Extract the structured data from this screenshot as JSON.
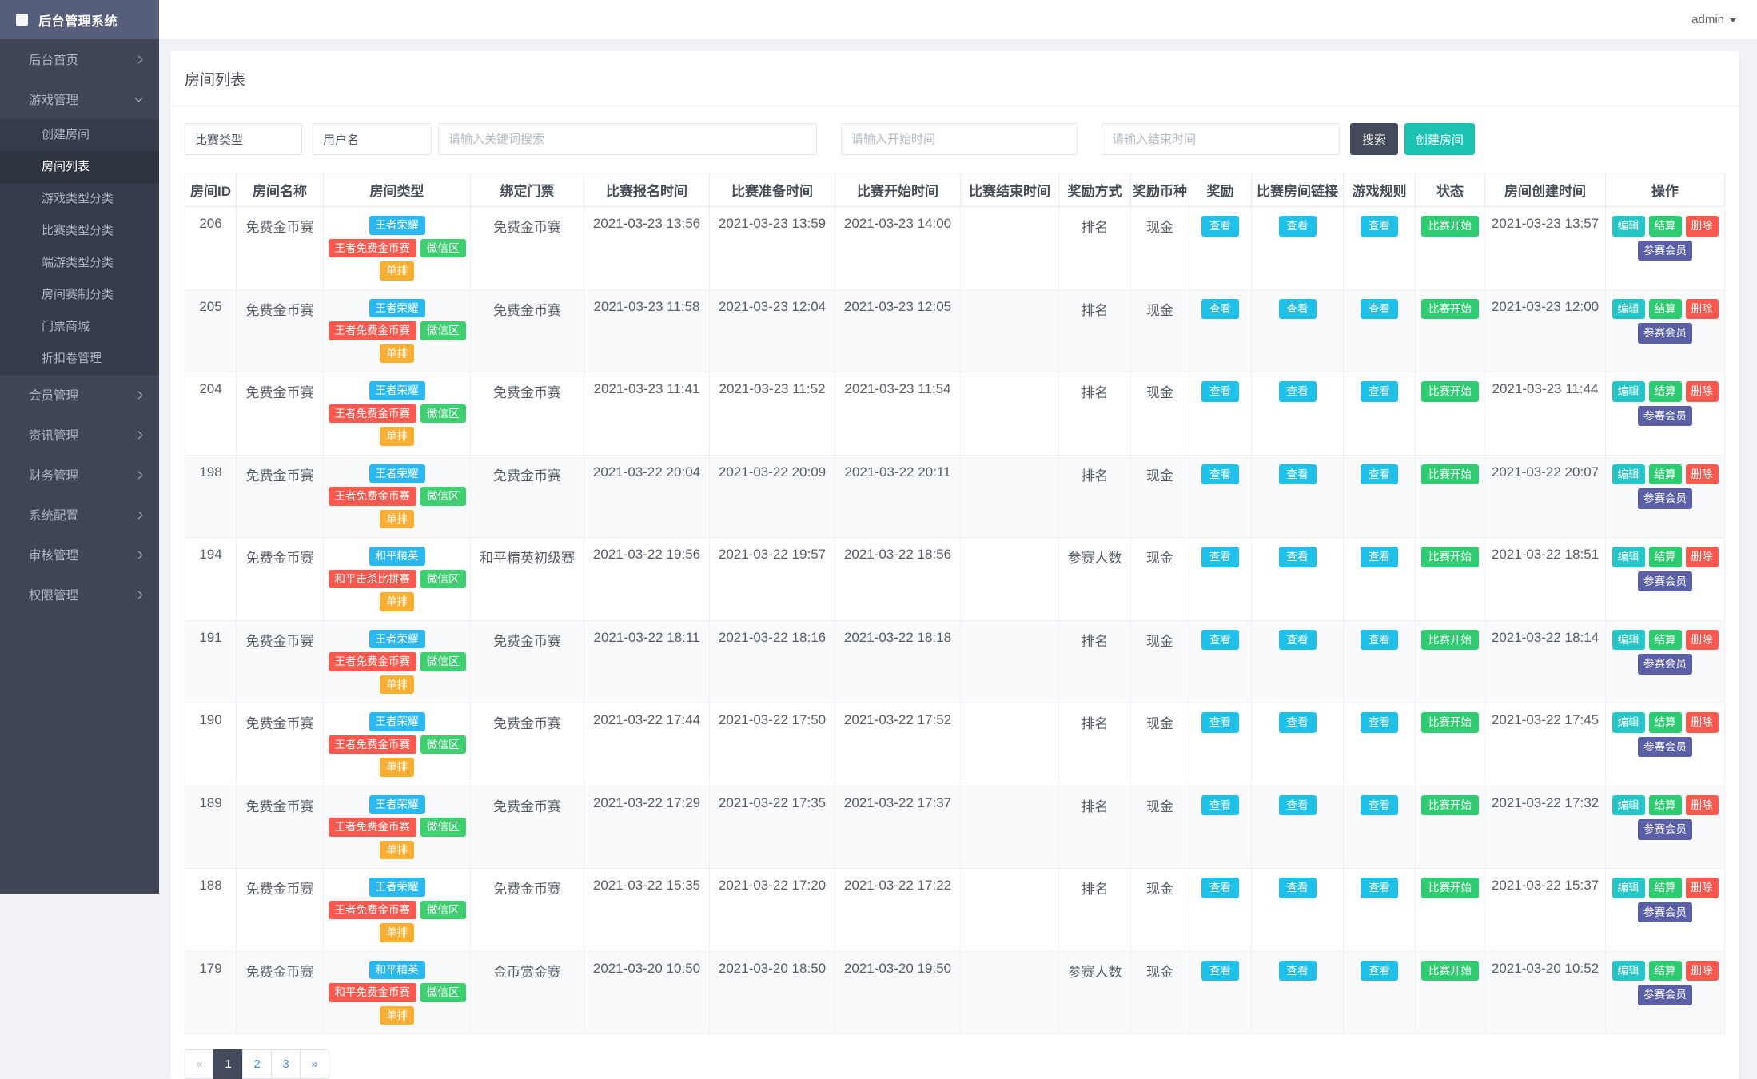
{
  "app": {
    "title": "后台管理系统",
    "user": "admin"
  },
  "theme": {
    "sidebar_bg": "#3f4554",
    "sidebar_header_bg": "#565e7c",
    "submenu_bg": "#363b49",
    "search_button_bg": "#434a5b",
    "create_button_bg": "#1bc2b1",
    "view_button_bg": "#1fc1e8",
    "status_bg": "#2fcc71",
    "edit_bg": "#25c6c8",
    "settle_bg": "#2ecc71",
    "delete_bg": "#f9594e",
    "member_bg": "#5b5fa6",
    "tag_blue": "#2ab8f0",
    "tag_red": "#f9594e",
    "tag_green": "#3ecf71",
    "tag_orange": "#f8af33"
  },
  "sidebar": {
    "items": [
      {
        "label": "后台首页",
        "chevron": "right"
      },
      {
        "label": "游戏管理",
        "chevron": "down",
        "expanded": true,
        "children": [
          {
            "label": "创建房间"
          },
          {
            "label": "房间列表",
            "active": true
          },
          {
            "label": "游戏类型分类"
          },
          {
            "label": "比赛类型分类"
          },
          {
            "label": "端游类型分类"
          },
          {
            "label": "房间赛制分类"
          },
          {
            "label": "门票商城"
          },
          {
            "label": "折扣卷管理"
          }
        ]
      },
      {
        "label": "会员管理",
        "chevron": "right"
      },
      {
        "label": "资讯管理",
        "chevron": "right"
      },
      {
        "label": "财务管理",
        "chevron": "right"
      },
      {
        "label": "系统配置",
        "chevron": "right"
      },
      {
        "label": "审核管理",
        "chevron": "right"
      },
      {
        "label": "权限管理",
        "chevron": "right"
      }
    ]
  },
  "page": {
    "title": "房间列表"
  },
  "filters": {
    "match_type_select": "比赛类型",
    "username_select": "用户名",
    "keyword_placeholder": "请输入关键词搜索",
    "start_time_placeholder": "请输入开始时间",
    "end_time_placeholder": "请输入结束时间",
    "search_button": "搜索",
    "create_room_button": "创建房间"
  },
  "table": {
    "columns": [
      "房间ID",
      "房间名称",
      "房间类型",
      "绑定门票",
      "比赛报名时间",
      "比赛准备时间",
      "比赛开始时间",
      "比赛结束时间",
      "奖励方式",
      "奖励币种",
      "奖励",
      "比赛房间链接",
      "游戏规则",
      "状态",
      "房间创建时间",
      "操作"
    ],
    "view_button": "查看",
    "actions": {
      "edit": "编辑",
      "settle": "结算",
      "delete": "删除",
      "members": "参赛会员"
    },
    "rows": [
      {
        "id": "206",
        "name": "免费金币赛",
        "tags": [
          {
            "text": "王者荣耀",
            "color": "blue"
          },
          {
            "text": "王者免费金币赛",
            "color": "red"
          },
          {
            "text": "微信区",
            "color": "green"
          },
          {
            "text": "单排",
            "color": "orange"
          }
        ],
        "ticket": "免费金币赛",
        "signup_time": "2021-03-23 13:56",
        "ready_time": "2021-03-23 13:59",
        "start_time": "2021-03-23 14:00",
        "end_time": "",
        "reward_mode": "排名",
        "reward_currency": "现金",
        "status": "比赛开始",
        "created_time": "2021-03-23 13:57"
      },
      {
        "id": "205",
        "name": "免费金币赛",
        "tags": [
          {
            "text": "王者荣耀",
            "color": "blue"
          },
          {
            "text": "王者免费金币赛",
            "color": "red"
          },
          {
            "text": "微信区",
            "color": "green"
          },
          {
            "text": "单排",
            "color": "orange"
          }
        ],
        "ticket": "免费金币赛",
        "signup_time": "2021-03-23 11:58",
        "ready_time": "2021-03-23 12:04",
        "start_time": "2021-03-23 12:05",
        "end_time": "",
        "reward_mode": "排名",
        "reward_currency": "现金",
        "status": "比赛开始",
        "created_time": "2021-03-23 12:00"
      },
      {
        "id": "204",
        "name": "免费金币赛",
        "tags": [
          {
            "text": "王者荣耀",
            "color": "blue"
          },
          {
            "text": "王者免费金币赛",
            "color": "red"
          },
          {
            "text": "微信区",
            "color": "green"
          },
          {
            "text": "单排",
            "color": "orange"
          }
        ],
        "ticket": "免费金币赛",
        "signup_time": "2021-03-23 11:41",
        "ready_time": "2021-03-23 11:52",
        "start_time": "2021-03-23 11:54",
        "end_time": "",
        "reward_mode": "排名",
        "reward_currency": "现金",
        "status": "比赛开始",
        "created_time": "2021-03-23 11:44"
      },
      {
        "id": "198",
        "name": "免费金币赛",
        "tags": [
          {
            "text": "王者荣耀",
            "color": "blue"
          },
          {
            "text": "王者免费金币赛",
            "color": "red"
          },
          {
            "text": "微信区",
            "color": "green"
          },
          {
            "text": "单排",
            "color": "orange"
          }
        ],
        "ticket": "免费金币赛",
        "signup_time": "2021-03-22 20:04",
        "ready_time": "2021-03-22 20:09",
        "start_time": "2021-03-22 20:11",
        "end_time": "",
        "reward_mode": "排名",
        "reward_currency": "现金",
        "status": "比赛开始",
        "created_time": "2021-03-22 20:07"
      },
      {
        "id": "194",
        "name": "免费金币赛",
        "tags": [
          {
            "text": "和平精英",
            "color": "blue"
          },
          {
            "text": "和平击杀比拼赛",
            "color": "red"
          },
          {
            "text": "微信区",
            "color": "green"
          },
          {
            "text": "单排",
            "color": "orange"
          }
        ],
        "ticket": "和平精英初级赛",
        "signup_time": "2021-03-22 19:56",
        "ready_time": "2021-03-22 19:57",
        "start_time": "2021-03-22 18:56",
        "end_time": "",
        "reward_mode": "参赛人数",
        "reward_currency": "现金",
        "status": "比赛开始",
        "created_time": "2021-03-22 18:51"
      },
      {
        "id": "191",
        "name": "免费金币赛",
        "tags": [
          {
            "text": "王者荣耀",
            "color": "blue"
          },
          {
            "text": "王者免费金币赛",
            "color": "red"
          },
          {
            "text": "微信区",
            "color": "green"
          },
          {
            "text": "单排",
            "color": "orange"
          }
        ],
        "ticket": "免费金币赛",
        "signup_time": "2021-03-22 18:11",
        "ready_time": "2021-03-22 18:16",
        "start_time": "2021-03-22 18:18",
        "end_time": "",
        "reward_mode": "排名",
        "reward_currency": "现金",
        "status": "比赛开始",
        "created_time": "2021-03-22 18:14"
      },
      {
        "id": "190",
        "name": "免费金币赛",
        "tags": [
          {
            "text": "王者荣耀",
            "color": "blue"
          },
          {
            "text": "王者免费金币赛",
            "color": "red"
          },
          {
            "text": "微信区",
            "color": "green"
          },
          {
            "text": "单排",
            "color": "orange"
          }
        ],
        "ticket": "免费金币赛",
        "signup_time": "2021-03-22 17:44",
        "ready_time": "2021-03-22 17:50",
        "start_time": "2021-03-22 17:52",
        "end_time": "",
        "reward_mode": "排名",
        "reward_currency": "现金",
        "status": "比赛开始",
        "created_time": "2021-03-22 17:45"
      },
      {
        "id": "189",
        "name": "免费金币赛",
        "tags": [
          {
            "text": "王者荣耀",
            "color": "blue"
          },
          {
            "text": "王者免费金币赛",
            "color": "red"
          },
          {
            "text": "微信区",
            "color": "green"
          },
          {
            "text": "单排",
            "color": "orange"
          }
        ],
        "ticket": "免费金币赛",
        "signup_time": "2021-03-22 17:29",
        "ready_time": "2021-03-22 17:35",
        "start_time": "2021-03-22 17:37",
        "end_time": "",
        "reward_mode": "排名",
        "reward_currency": "现金",
        "status": "比赛开始",
        "created_time": "2021-03-22 17:32"
      },
      {
        "id": "188",
        "name": "免费金币赛",
        "tags": [
          {
            "text": "王者荣耀",
            "color": "blue"
          },
          {
            "text": "王者免费金币赛",
            "color": "red"
          },
          {
            "text": "微信区",
            "color": "green"
          },
          {
            "text": "单排",
            "color": "orange"
          }
        ],
        "ticket": "免费金币赛",
        "signup_time": "2021-03-22 15:35",
        "ready_time": "2021-03-22 17:20",
        "start_time": "2021-03-22 17:22",
        "end_time": "",
        "reward_mode": "排名",
        "reward_currency": "现金",
        "status": "比赛开始",
        "created_time": "2021-03-22 15:37"
      },
      {
        "id": "179",
        "name": "免费金币赛",
        "tags": [
          {
            "text": "和平精英",
            "color": "blue"
          },
          {
            "text": "和平免费金币赛",
            "color": "red"
          },
          {
            "text": "微信区",
            "color": "green"
          },
          {
            "text": "单排",
            "color": "orange"
          }
        ],
        "ticket": "金币赏金赛",
        "signup_time": "2021-03-20 10:50",
        "ready_time": "2021-03-20 18:50",
        "start_time": "2021-03-20 19:50",
        "end_time": "",
        "reward_mode": "参赛人数",
        "reward_currency": "现金",
        "status": "比赛开始",
        "created_time": "2021-03-20 10:52"
      }
    ]
  },
  "pagination": {
    "prev": "«",
    "pages": [
      "1",
      "2",
      "3"
    ],
    "next": "»",
    "active": "1"
  }
}
